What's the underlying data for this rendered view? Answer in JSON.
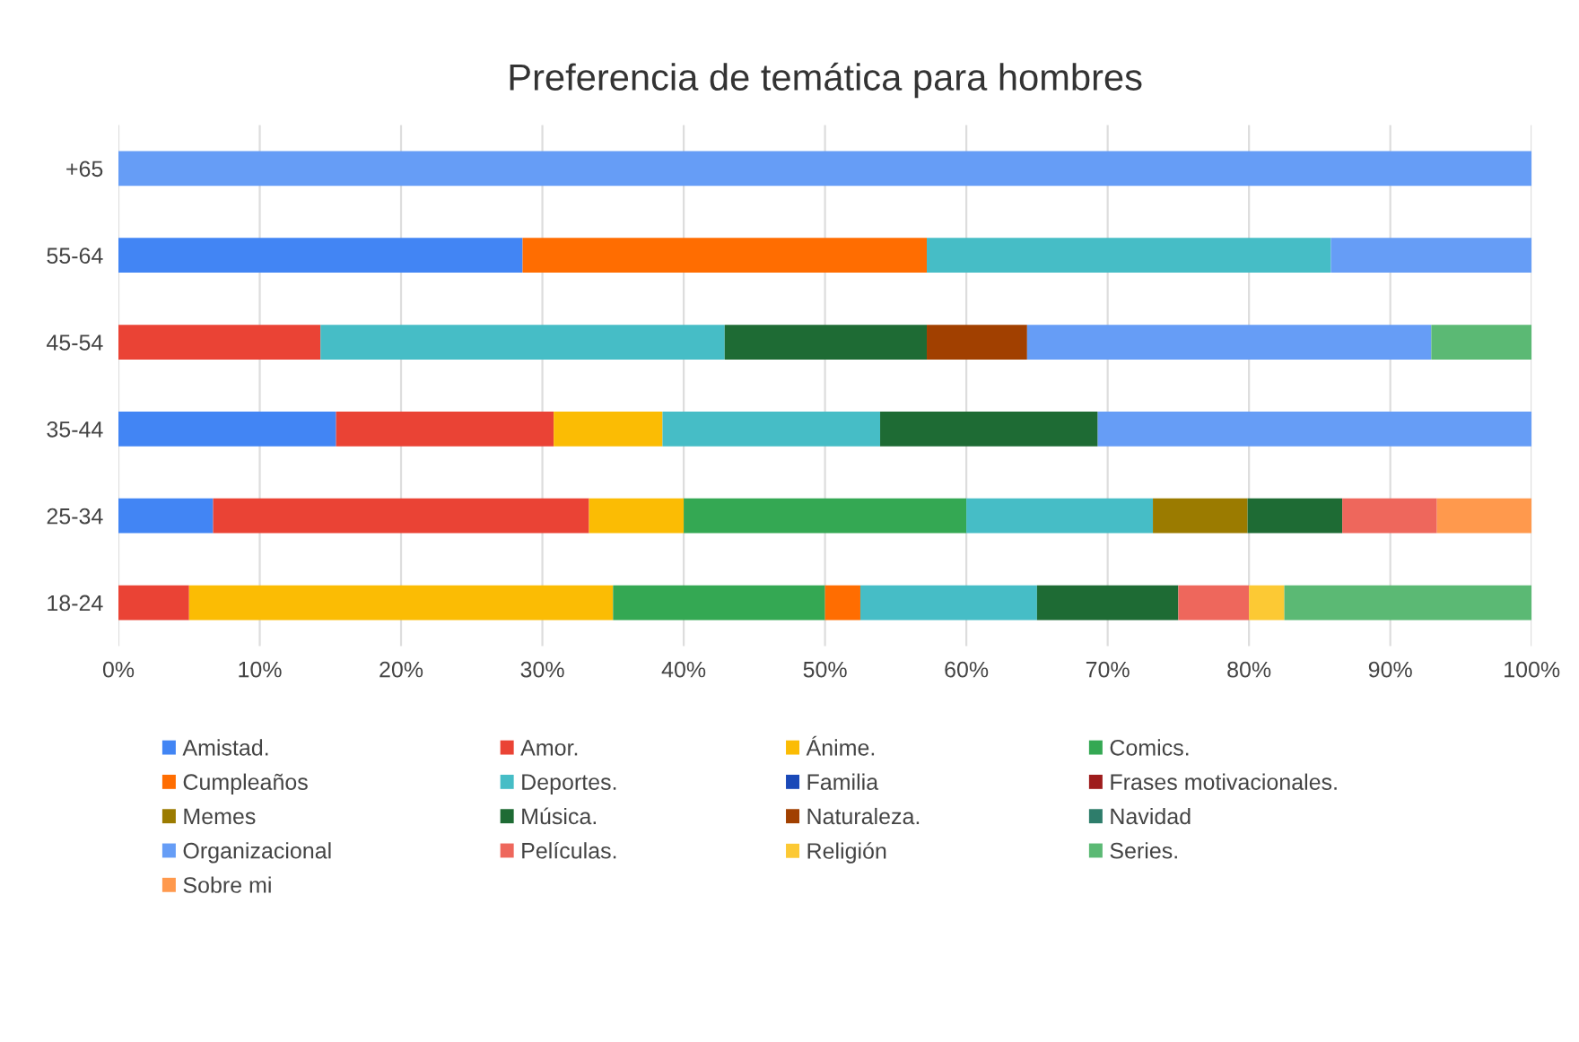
{
  "chart_data": {
    "type": "bar",
    "orientation": "horizontal",
    "stacked": true,
    "title": "Preferencia de temática para hombres",
    "categories": [
      "+65",
      "55-64",
      "45-54",
      "35-44",
      "25-34",
      "18-24"
    ],
    "series": [
      {
        "name": "Amistad.",
        "color": "#4285f4",
        "values": [
          null,
          28.6,
          null,
          15.4,
          6.7,
          null
        ]
      },
      {
        "name": "Amor.",
        "color": "#ea4335",
        "values": [
          null,
          null,
          14.3,
          15.4,
          26.6,
          5
        ]
      },
      {
        "name": "Ánime.",
        "color": "#fbbc04",
        "values": [
          null,
          null,
          null,
          7.7,
          6.7,
          30
        ]
      },
      {
        "name": "Comics.",
        "color": "#34a853",
        "values": [
          null,
          null,
          null,
          null,
          20,
          15
        ]
      },
      {
        "name": "Cumpleaños",
        "color": "#ff6d01",
        "values": [
          null,
          28.6,
          null,
          null,
          null,
          2.5
        ]
      },
      {
        "name": "Deportes.",
        "color": "#46bdc6",
        "values": [
          null,
          28.6,
          28.6,
          15.4,
          13.2,
          12.5
        ]
      },
      {
        "name": "Familia",
        "color": "#1a49b8",
        "values": [
          null,
          null,
          null,
          null,
          null,
          null
        ]
      },
      {
        "name": "Frases motivacionales.",
        "color": "#9e1c1c",
        "values": [
          null,
          null,
          null,
          null,
          null,
          null
        ]
      },
      {
        "name": "Memes",
        "color": "#9b7b00",
        "values": [
          null,
          null,
          null,
          null,
          6.7,
          null
        ]
      },
      {
        "name": "Música.",
        "color": "#1e6b34",
        "values": [
          null,
          null,
          14.3,
          15.4,
          6.7,
          10
        ]
      },
      {
        "name": "Naturaleza.",
        "color": "#a14000",
        "values": [
          null,
          null,
          7.1,
          null,
          null,
          null
        ]
      },
      {
        "name": "Navidad",
        "color": "#2e7d6b",
        "values": [
          null,
          null,
          null,
          null,
          null,
          null
        ]
      },
      {
        "name": "Organizacional",
        "color": "#669df6",
        "values": [
          100,
          14.2,
          28.6,
          30.7,
          null,
          null
        ]
      },
      {
        "name": "Películas.",
        "color": "#ee675c",
        "values": [
          null,
          null,
          null,
          null,
          6.7,
          5
        ]
      },
      {
        "name": "Religión",
        "color": "#fcc934",
        "values": [
          null,
          null,
          null,
          null,
          null,
          2.5
        ]
      },
      {
        "name": "Series.",
        "color": "#5bb974",
        "values": [
          null,
          null,
          7.1,
          null,
          null,
          17.5
        ]
      },
      {
        "name": "Sobre mi",
        "color": "#ff994d",
        "values": [
          null,
          null,
          null,
          null,
          6.7,
          null
        ]
      }
    ],
    "xlim": [
      0,
      100
    ],
    "xticks": [
      {
        "value": 0,
        "label": "0%"
      },
      {
        "value": 10,
        "label": "10%"
      },
      {
        "value": 20,
        "label": "20%"
      },
      {
        "value": 30,
        "label": "30%"
      },
      {
        "value": 40,
        "label": "40%"
      },
      {
        "value": 50,
        "label": "50%"
      },
      {
        "value": 60,
        "label": "60%"
      },
      {
        "value": 70,
        "label": "70%"
      },
      {
        "value": 80,
        "label": "80%"
      },
      {
        "value": 90,
        "label": "90%"
      },
      {
        "value": 100,
        "label": "100%"
      }
    ],
    "grid": "x",
    "legend": "bottom"
  }
}
